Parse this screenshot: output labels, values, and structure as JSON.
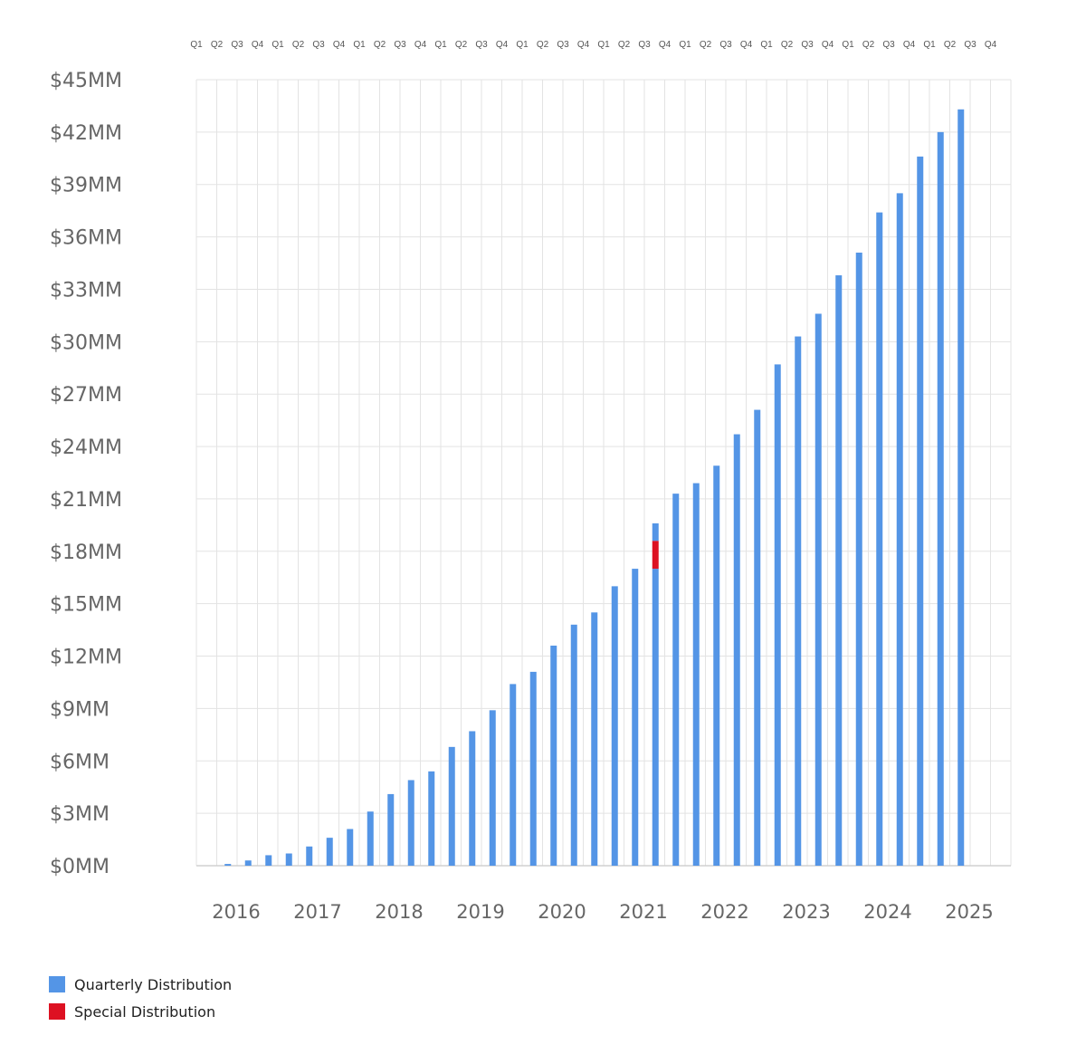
{
  "chart_data": {
    "type": "bar",
    "stacked": true,
    "title": "",
    "xlabel": "",
    "ylabel": "",
    "ylim": [
      0,
      45
    ],
    "y_ticks": [
      "$0MM",
      "$3MM",
      "$6MM",
      "$9MM",
      "$12MM",
      "$15MM",
      "$18MM",
      "$21MM",
      "$24MM",
      "$27MM",
      "$30MM",
      "$33MM",
      "$36MM",
      "$39MM",
      "$42MM",
      "$45MM"
    ],
    "years": [
      "2016",
      "2017",
      "2018",
      "2019",
      "2020",
      "2021",
      "2022",
      "2023",
      "2024",
      "2025"
    ],
    "quarter_labels": [
      "Q1",
      "Q2",
      "Q3",
      "Q4"
    ],
    "categories": [
      "2016 Q1",
      "2016 Q2",
      "2016 Q3",
      "2016 Q4",
      "2017 Q1",
      "2017 Q2",
      "2017 Q3",
      "2017 Q4",
      "2018 Q1",
      "2018 Q2",
      "2018 Q3",
      "2018 Q4",
      "2019 Q1",
      "2019 Q2",
      "2019 Q3",
      "2019 Q4",
      "2020 Q1",
      "2020 Q2",
      "2020 Q3",
      "2020 Q4",
      "2021 Q1",
      "2021 Q2",
      "2021 Q3",
      "2021 Q4",
      "2022 Q1",
      "2022 Q2",
      "2022 Q3",
      "2022 Q4",
      "2023 Q1",
      "2023 Q2",
      "2023 Q3",
      "2023 Q4",
      "2024 Q1",
      "2024 Q2",
      "2024 Q3",
      "2024 Q4",
      "2025 Q1",
      "2025 Q2",
      "2025 Q3",
      "2025 Q4"
    ],
    "series": [
      {
        "name": "Quarterly Distribution",
        "color": "#5495e6",
        "values": [
          0,
          0.1,
          0.3,
          0.6,
          0.7,
          1.1,
          1.6,
          2.1,
          3.1,
          4.1,
          4.9,
          5.4,
          6.8,
          7.7,
          8.9,
          10.4,
          11.1,
          12.6,
          13.8,
          14.5,
          16.0,
          17.0,
          17.0,
          21.3,
          21.9,
          22.9,
          24.7,
          26.1,
          28.7,
          30.3,
          31.6,
          33.8,
          35.1,
          37.4,
          38.5,
          40.6,
          42.0,
          43.3,
          0,
          0
        ]
      },
      {
        "name": "Special Distribution",
        "color": "#dd1122",
        "values": [
          0,
          0,
          0,
          0,
          0,
          0,
          0,
          0,
          0,
          0,
          0,
          0,
          0,
          0,
          0,
          0,
          0,
          0,
          0,
          0,
          0,
          0,
          1.6,
          0,
          0,
          0,
          0,
          0,
          0,
          0,
          0,
          0,
          0,
          0,
          0,
          0,
          0,
          0,
          0,
          0
        ]
      },
      {
        "name": "",
        "color": "#5495e6",
        "values": [
          0,
          0,
          0,
          0,
          0,
          0,
          0,
          0,
          0,
          0,
          0,
          0,
          0,
          0,
          0,
          0,
          0,
          0,
          0,
          0,
          0,
          0,
          1.0,
          0,
          0,
          0,
          0,
          0,
          0,
          0,
          0,
          0,
          0,
          0,
          0,
          0,
          0,
          0,
          0,
          0
        ]
      }
    ],
    "grid": true,
    "legend_position": "bottom-left",
    "colors": {
      "grid": "#e3e3e3",
      "axis": "#d0d0d0",
      "text": "#666666"
    }
  },
  "legend": {
    "items": [
      {
        "label": "Quarterly Distribution",
        "color": "#5495e6"
      },
      {
        "label": "Special Distribution",
        "color": "#dd1122"
      }
    ]
  }
}
